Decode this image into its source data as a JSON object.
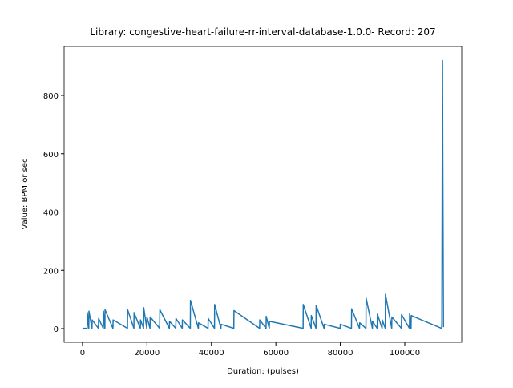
{
  "chart_data": {
    "type": "line",
    "title": "Library: congestive-heart-failure-rr-interval-database-1.0.0- Record: 207",
    "xlabel": "Duration: (pulses)",
    "ylabel": "Value: BPM or sec",
    "color": "#1f77b4",
    "x": [
      0,
      1450,
      1500,
      1950,
      2000,
      2950,
      3000,
      4950,
      5000,
      6450,
      6500,
      6950,
      7000,
      9450,
      9500,
      13950,
      14000,
      15950,
      16000,
      17950,
      18000,
      18950,
      19000,
      19950,
      20000,
      20950,
      21000,
      23950,
      24000,
      26950,
      27000,
      28950,
      29000,
      30950,
      31000,
      33450,
      33500,
      35950,
      36000,
      38950,
      39000,
      40950,
      41000,
      42950,
      43000,
      46950,
      47000,
      54950,
      55000,
      56950,
      57000,
      57950,
      58000,
      68450,
      68500,
      70950,
      71000,
      72450,
      72500,
      74950,
      75000,
      79950,
      80000,
      83450,
      83500,
      85950,
      86000,
      87950,
      88000,
      89950,
      90000,
      91450,
      91500,
      92950,
      93000,
      93950,
      94000,
      95950,
      96000,
      98950,
      99000,
      101450,
      101500,
      101950,
      102000,
      111450,
      111500,
      111700,
      111800,
      112000
    ],
    "values": [
      1,
      1,
      55,
      1,
      60,
      1,
      30,
      1,
      35,
      1,
      60,
      1,
      65,
      1,
      30,
      1,
      65,
      1,
      55,
      1,
      30,
      1,
      72,
      1,
      40,
      1,
      40,
      1,
      65,
      1,
      25,
      1,
      35,
      1,
      30,
      1,
      97,
      1,
      20,
      1,
      35,
      1,
      83,
      1,
      15,
      1,
      62,
      1,
      30,
      1,
      42,
      1,
      25,
      1,
      83,
      1,
      45,
      1,
      80,
      1,
      15,
      1,
      15,
      1,
      68,
      1,
      20,
      1,
      105,
      1,
      25,
      1,
      50,
      1,
      30,
      1,
      118,
      1,
      40,
      1,
      48,
      1,
      52,
      1,
      45,
      1,
      20,
      920,
      590,
      5
    ],
    "xlim": [
      -5700,
      117660
    ],
    "ylim": [
      -46.7,
      967.7
    ],
    "xticks": [
      0,
      20000,
      40000,
      60000,
      80000,
      100000
    ],
    "yticks": [
      0,
      200,
      400,
      600,
      800
    ]
  }
}
